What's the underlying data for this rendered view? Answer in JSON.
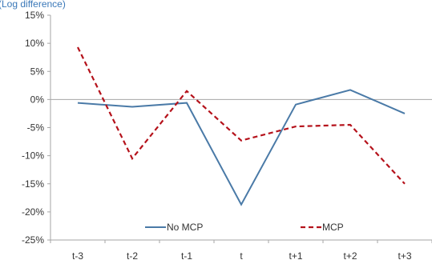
{
  "chart_data": {
    "type": "line",
    "subtitle": "(Log difference)",
    "categories": [
      "t-3",
      "t-2",
      "t-1",
      "t",
      "t+1",
      "t+2",
      "t+3"
    ],
    "ylim": [
      -25,
      15
    ],
    "yticks": [
      15,
      10,
      5,
      0,
      -5,
      -10,
      -15,
      -20,
      -25
    ],
    "ytick_labels": [
      "15%",
      "10%",
      "5%",
      "0%",
      "-5%",
      "-10%",
      "-15%",
      "-20%",
      "-25%"
    ],
    "grid": false,
    "legend_position": "bottom-inside",
    "series": [
      {
        "name": "No MCP",
        "color": "#4a7aa7",
        "dash": "solid",
        "values": [
          -0.6,
          -1.3,
          -0.6,
          -18.7,
          -0.9,
          1.7,
          -2.5
        ]
      },
      {
        "name": "MCP",
        "color": "#b5121b",
        "dash": "dashed",
        "values": [
          9.3,
          -10.5,
          1.5,
          -7.3,
          -4.8,
          -4.5,
          -15.0
        ]
      }
    ]
  }
}
